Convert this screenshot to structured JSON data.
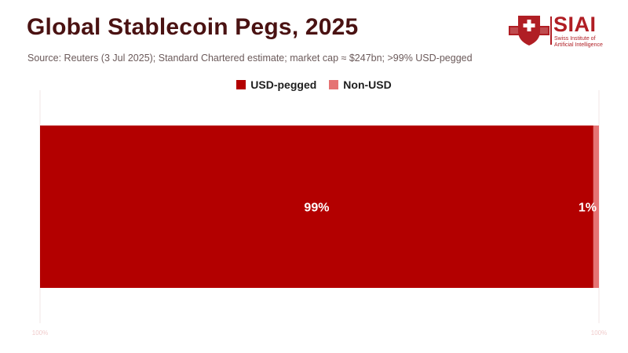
{
  "header": {
    "title": "Global Stablecoin Pegs, 2025",
    "subtitle": "Source: Reuters (3 Jul 2025); Standard Chartered estimate; market cap ≈ $247bn; >99% USD-pegged"
  },
  "logo": {
    "word": "SIAI",
    "sub_line1": "Swiss Institute of",
    "sub_line2": "Artificial Intelligence"
  },
  "colors": {
    "usd": "#b30000",
    "non_usd": "#e57373",
    "title": "#4a1212",
    "brand": "#b01e24"
  },
  "chart_data": {
    "type": "bar",
    "orientation": "horizontal-stacked",
    "categories": [
      ""
    ],
    "series": [
      {
        "name": "USD-pegged",
        "values": [
          99
        ],
        "label": "99%"
      },
      {
        "name": "Non-USD",
        "values": [
          1
        ],
        "label": "1%"
      }
    ],
    "xlim": [
      0,
      100
    ],
    "x_ticks": [
      "100%",
      "100%"
    ],
    "legend_position": "top-center",
    "grid": false
  }
}
